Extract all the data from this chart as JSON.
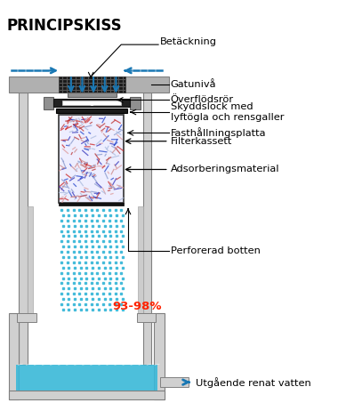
{
  "title": "PRINCIPSKISS",
  "labels": {
    "betackning": "Betäckning",
    "gatuniva": "Gatunivå",
    "overflodsror": "Överflödsrör",
    "skyddslock": "Skyddslock med\nlyftögla och rensgaller",
    "fasthallningsplatta": "Fasthållningsplatta",
    "filterkassett": "Filterkassett",
    "adsorberingsmaterial": "Adsorberingsmaterial",
    "perforerad": "Perforerad botten",
    "procent": "93-98%",
    "utgaende": "Utgående renat vatten"
  },
  "colors": {
    "background": "#ffffff",
    "title": "#000000",
    "label": "#000000",
    "procent": "#ff2200",
    "blue_arrow": "#1a78b4",
    "pipe_light": "#d0d0d0",
    "pipe_mid": "#b0b0b0",
    "pipe_dark": "#808080",
    "black": "#000000",
    "white": "#ffffff",
    "water_blue": "#3ab8d8",
    "dashed_blue": "#1a78b4",
    "grate_black": "#1a1a1a",
    "dark_part": "#404040",
    "darker_part": "#303030"
  },
  "figsize": [
    3.8,
    4.71
  ],
  "dpi": 100
}
